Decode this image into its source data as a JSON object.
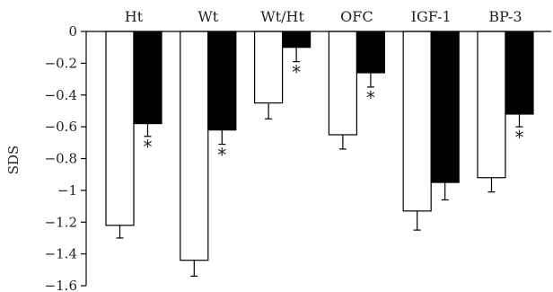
{
  "chart_data": {
    "type": "bar",
    "title": "",
    "xlabel": "",
    "ylabel": "SDS",
    "ylim": [
      -1.6,
      0
    ],
    "yticks": [
      "0",
      "−0.2",
      "−0.4",
      "−0.6",
      "−0.8",
      "−1",
      "−1.2",
      "−1.4",
      "−1.6"
    ],
    "ytick_values": [
      0,
      -0.2,
      -0.4,
      -0.6,
      -0.8,
      -1,
      -1.2,
      -1.4,
      -1.6
    ],
    "categories": [
      "Ht",
      "Wt",
      "Wt/Ht",
      "OFC",
      "IGF-1",
      "BP-3"
    ],
    "series": [
      {
        "color": "#ffffff",
        "values": [
          -1.22,
          -1.44,
          -0.45,
          -0.65,
          -1.13,
          -0.92
        ],
        "errors": [
          0.08,
          0.1,
          0.1,
          0.09,
          0.12,
          0.09
        ]
      },
      {
        "color": "#000000",
        "values": [
          -0.58,
          -0.62,
          -0.1,
          -0.26,
          -0.95,
          -0.52
        ],
        "errors": [
          0.08,
          0.09,
          0.09,
          0.09,
          0.11,
          0.08
        ]
      }
    ],
    "significance": [
      "*",
      "*",
      "*",
      "*",
      "",
      "*"
    ],
    "grid": false,
    "legend": "none"
  }
}
